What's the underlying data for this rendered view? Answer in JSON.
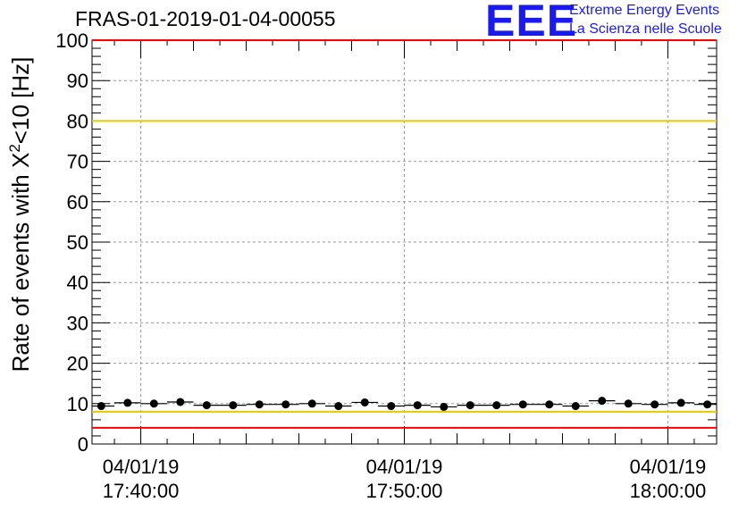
{
  "header": {
    "title": "FRAS-01-2019-01-04-00055",
    "logo_mark": "EEE",
    "logo_line1": "Extreme Energy Events",
    "logo_line2": "La Scienza nelle Scuole"
  },
  "colors": {
    "frame": "#000000",
    "grid": "#999999",
    "red_line": "#ff0000",
    "yellow_line": "#e8c800",
    "points": "#000000",
    "logo": "#1a1aee"
  },
  "chart_data": {
    "type": "scatter",
    "title": "FRAS-01-2019-01-04-00055",
    "ylabel": "Rate of events with X^2<10 [Hz]",
    "xlabel": "",
    "ylim": [
      0,
      100
    ],
    "yticks": [
      "0",
      "10",
      "20",
      "30",
      "40",
      "50",
      "60",
      "70",
      "80",
      "90",
      "100"
    ],
    "xlim_minutes": [
      -1.85,
      21.85
    ],
    "xticks": [
      {
        "minute": 0,
        "date": "04/01/19",
        "time": "17:40:00"
      },
      {
        "minute": 10,
        "date": "04/01/19",
        "time": "17:50:00"
      },
      {
        "minute": 20,
        "date": "04/01/19",
        "time": "18:00:00"
      }
    ],
    "grid": true,
    "reference_lines": [
      {
        "y": 100,
        "color": "red"
      },
      {
        "y": 80,
        "color": "yellow"
      },
      {
        "y": 8,
        "color": "yellow"
      },
      {
        "y": 4,
        "color": "red"
      }
    ],
    "series": [
      {
        "minutes": [
          -1.5,
          -0.5,
          0.5,
          1.5,
          2.5,
          3.5,
          4.5,
          5.5,
          6.5,
          7.5,
          8.5,
          9.5,
          10.5,
          11.5,
          12.5,
          13.5,
          14.5,
          15.5,
          16.5,
          17.5,
          18.5,
          19.5,
          20.5,
          21.5
        ],
        "values": [
          9.4,
          10.2,
          10.0,
          10.4,
          9.6,
          9.6,
          9.8,
          9.8,
          10.0,
          9.4,
          10.3,
          9.4,
          9.6,
          9.2,
          9.6,
          9.6,
          9.8,
          9.8,
          9.4,
          10.7,
          10.0,
          9.8,
          10.2,
          9.8
        ]
      }
    ]
  }
}
